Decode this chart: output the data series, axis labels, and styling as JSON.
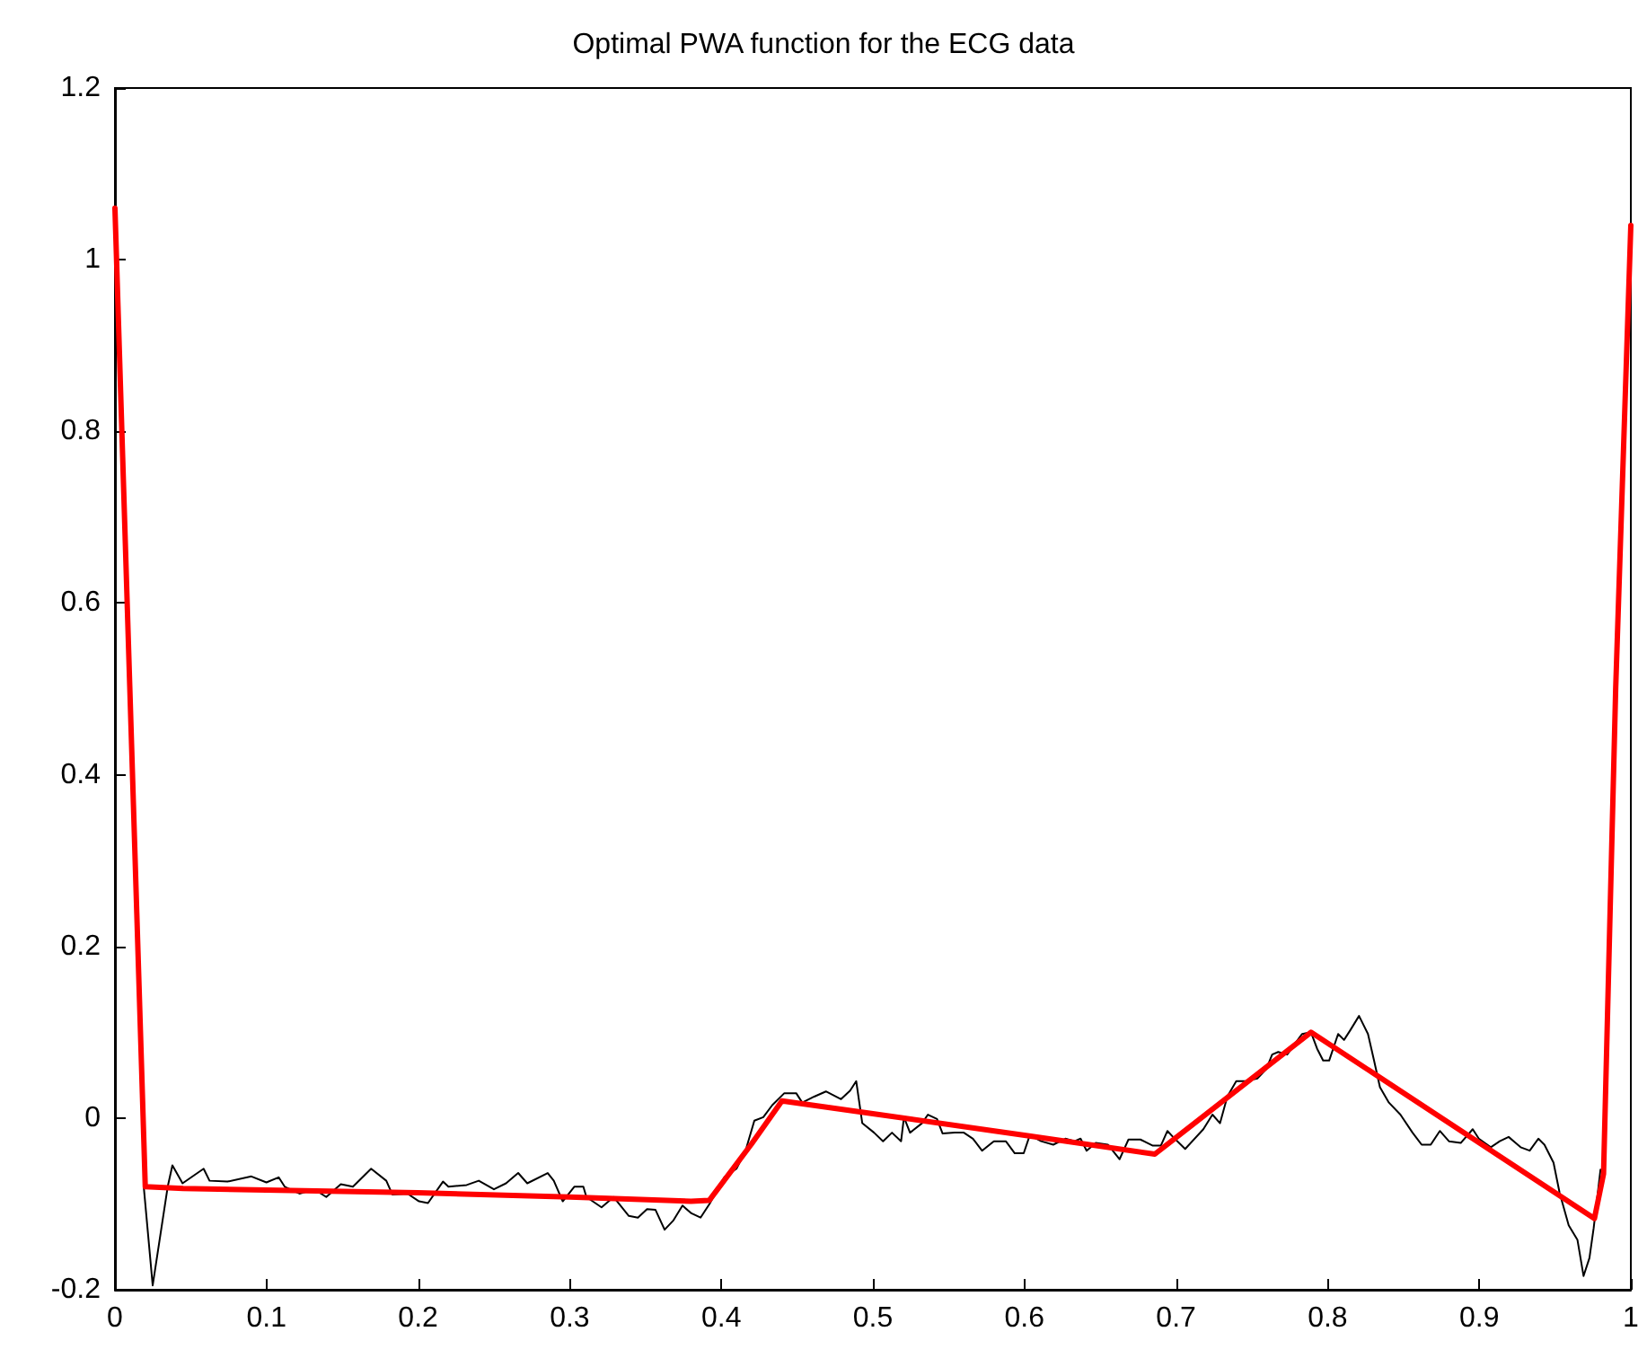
{
  "chart_data": {
    "type": "line",
    "title": "Optimal PWA function for the ECG data",
    "xlim": [
      0,
      1
    ],
    "xticks": [
      0,
      0.1,
      0.2,
      0.3,
      0.4,
      0.5,
      0.6,
      0.7,
      0.8,
      0.9,
      1
    ],
    "ylim": [
      -0.2,
      1.2
    ],
    "yticks": [
      -0.2,
      0,
      0.2,
      0.4,
      0.6,
      0.8,
      1,
      1.2
    ],
    "grid": false,
    "marker": "none",
    "series": [
      {
        "color": "#000000",
        "x": [
          0.019,
          0.0249,
          0.0348,
          0.0379,
          0.0446,
          0.0585,
          0.0624,
          0.0742,
          0.09,
          0.0999,
          0.108,
          0.112,
          0.1217,
          0.1315,
          0.1394,
          0.149,
          0.157,
          0.169,
          0.179,
          0.183,
          0.193,
          0.2006,
          0.2065,
          0.2164,
          0.22,
          0.232,
          0.24,
          0.25,
          0.258,
          0.266,
          0.272,
          0.2855,
          0.2895,
          0.2954,
          0.303,
          0.309,
          0.311,
          0.321,
          0.329,
          0.339,
          0.345,
          0.351,
          0.3566,
          0.3626,
          0.3685,
          0.3744,
          0.3803,
          0.3863,
          0.3922,
          0.402,
          0.41,
          0.416,
          0.4218,
          0.4277,
          0.4336,
          0.4416,
          0.4494,
          0.4534,
          0.4613,
          0.469,
          0.479,
          0.485,
          0.489,
          0.493,
          0.5008,
          0.5067,
          0.5126,
          0.5186,
          0.5205,
          0.5245,
          0.5324,
          0.5363,
          0.5423,
          0.546,
          0.554,
          0.56,
          0.566,
          0.572,
          0.5798,
          0.5877,
          0.5936,
          0.5995,
          0.6035,
          0.611,
          0.619,
          0.627,
          0.633,
          0.637,
          0.641,
          0.647,
          0.655,
          0.6627,
          0.6686,
          0.6765,
          0.6844,
          0.69,
          0.6943,
          0.698,
          0.706,
          0.718,
          0.724,
          0.729,
          0.7338,
          0.7397,
          0.7457,
          0.7536,
          0.7595,
          0.7634,
          0.7674,
          0.7733,
          0.7773,
          0.7832,
          0.789,
          0.793,
          0.797,
          0.801,
          0.8069,
          0.8108,
          0.8148,
          0.8207,
          0.8266,
          0.8306,
          0.8345,
          0.8404,
          0.848,
          0.856,
          0.862,
          0.868,
          0.874,
          0.88,
          0.8878,
          0.8957,
          0.8997,
          0.9076,
          0.9135,
          0.9194,
          0.9273,
          0.9333,
          0.939,
          0.943,
          0.949,
          0.953,
          0.959,
          0.9648,
          0.9688,
          0.9727,
          0.9755,
          0.98
        ],
        "values": [
          -0.08,
          -0.195,
          -0.08,
          -0.055,
          -0.076,
          -0.059,
          -0.073,
          -0.074,
          -0.068,
          -0.075,
          -0.069,
          -0.08,
          -0.088,
          -0.083,
          -0.092,
          -0.077,
          -0.08,
          -0.059,
          -0.073,
          -0.089,
          -0.088,
          -0.097,
          -0.099,
          -0.074,
          -0.08,
          -0.078,
          -0.073,
          -0.083,
          -0.076,
          -0.064,
          -0.076,
          -0.064,
          -0.073,
          -0.097,
          -0.08,
          -0.08,
          -0.092,
          -0.104,
          -0.092,
          -0.114,
          -0.116,
          -0.106,
          -0.107,
          -0.13,
          -0.119,
          -0.102,
          -0.111,
          -0.116,
          -0.1,
          -0.069,
          -0.059,
          -0.038,
          -0.003,
          0.001,
          0.015,
          0.029,
          0.029,
          0.018,
          0.025,
          0.031,
          0.022,
          0.032,
          0.043,
          -0.006,
          -0.017,
          -0.027,
          -0.017,
          -0.027,
          0.001,
          -0.017,
          -0.006,
          0.004,
          -0.001,
          -0.018,
          -0.017,
          -0.017,
          -0.024,
          -0.038,
          -0.027,
          -0.027,
          -0.041,
          -0.041,
          -0.02,
          -0.027,
          -0.031,
          -0.024,
          -0.027,
          -0.024,
          -0.038,
          -0.029,
          -0.031,
          -0.048,
          -0.025,
          -0.025,
          -0.032,
          -0.032,
          -0.015,
          -0.022,
          -0.036,
          -0.013,
          0.004,
          -0.006,
          0.025,
          0.043,
          0.043,
          0.046,
          0.057,
          0.074,
          0.077,
          0.074,
          0.084,
          0.098,
          0.1,
          0.081,
          0.067,
          0.067,
          0.098,
          0.091,
          0.102,
          0.119,
          0.098,
          0.067,
          0.036,
          0.018,
          0.004,
          -0.017,
          -0.031,
          -0.031,
          -0.015,
          -0.027,
          -0.029,
          -0.013,
          -0.024,
          -0.034,
          -0.027,
          -0.022,
          -0.034,
          -0.038,
          -0.024,
          -0.031,
          -0.052,
          -0.087,
          -0.125,
          -0.142,
          -0.184,
          -0.163,
          -0.128,
          -0.06
        ]
      },
      {
        "color": "#ff0000",
        "x": [
          0,
          0.02,
          0.045,
          0.2,
          0.3,
          0.38,
          0.392,
          0.42,
          0.44,
          0.5,
          0.6,
          0.686,
          0.789,
          0.976,
          0.982,
          0.99,
          1
        ],
        "values": [
          1.06,
          -0.08,
          -0.082,
          -0.087,
          -0.092,
          -0.097,
          -0.096,
          -0.03,
          0.02,
          0.005,
          -0.02,
          -0.042,
          0.1,
          -0.117,
          -0.065,
          0.5,
          1.04
        ]
      }
    ]
  }
}
